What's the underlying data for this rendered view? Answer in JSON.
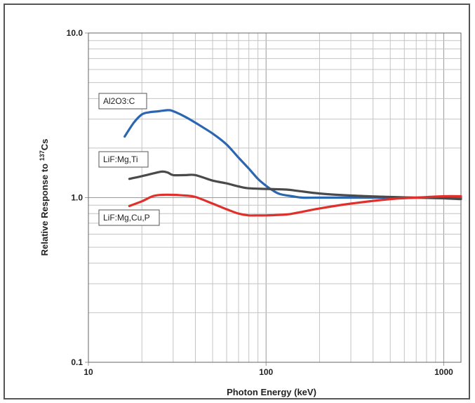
{
  "chart_data": {
    "type": "line",
    "xlabel": "Photon Energy (keV)",
    "ylabel_main": "Relative Response to ",
    "ylabel_sup": "137",
    "ylabel_end": "Cs",
    "x_scale": "log",
    "y_scale": "log",
    "xlim": [
      10,
      1250
    ],
    "ylim": [
      0.1,
      10
    ],
    "xticks": [
      {
        "value": 10,
        "label": "10"
      },
      {
        "value": 100,
        "label": "100"
      },
      {
        "value": 1000,
        "label": "1000"
      }
    ],
    "yticks": [
      {
        "value": 0.1,
        "label": "0.1"
      },
      {
        "value": 1,
        "label": "1.0"
      },
      {
        "value": 10,
        "label": "10.0"
      }
    ],
    "grid": true,
    "series": [
      {
        "name": "Al2O3:C",
        "color": "#2b66b1",
        "x": [
          16,
          18,
          20,
          22,
          25,
          28,
          30,
          35,
          40,
          50,
          60,
          70,
          80,
          90,
          100,
          110,
          120,
          140,
          160,
          200,
          300,
          500,
          700,
          1000,
          1250
        ],
        "y": [
          2.35,
          2.85,
          3.2,
          3.3,
          3.35,
          3.4,
          3.35,
          3.1,
          2.85,
          2.45,
          2.1,
          1.75,
          1.5,
          1.3,
          1.18,
          1.1,
          1.05,
          1.02,
          1.0,
          1.0,
          1.0,
          1.0,
          1.0,
          1.0,
          1.0
        ]
      },
      {
        "name": "LiF:Mg,Ti",
        "color": "#4a4a4a",
        "x": [
          17,
          20,
          23,
          26,
          28,
          30,
          35,
          40,
          50,
          60,
          70,
          80,
          100,
          130,
          150,
          200,
          300,
          500,
          700,
          1000,
          1250
        ],
        "y": [
          1.3,
          1.35,
          1.4,
          1.44,
          1.42,
          1.37,
          1.37,
          1.37,
          1.27,
          1.22,
          1.17,
          1.14,
          1.13,
          1.12,
          1.1,
          1.06,
          1.03,
          1.01,
          1.0,
          0.99,
          0.98
        ]
      },
      {
        "name": "LiF:Mg,Cu,P",
        "color": "#e0302b",
        "x": [
          17,
          20,
          23,
          26,
          30,
          35,
          40,
          50,
          60,
          70,
          80,
          90,
          100,
          130,
          150,
          200,
          300,
          500,
          700,
          1000,
          1250
        ],
        "y": [
          0.89,
          0.95,
          1.02,
          1.04,
          1.04,
          1.03,
          1.01,
          0.92,
          0.85,
          0.8,
          0.78,
          0.78,
          0.78,
          0.79,
          0.81,
          0.86,
          0.92,
          0.98,
          1.0,
          1.02,
          1.02
        ]
      }
    ]
  }
}
